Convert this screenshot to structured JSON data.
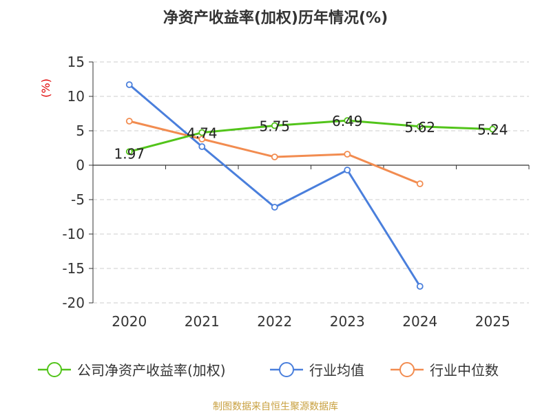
{
  "chart_data": {
    "type": "line",
    "title": "净资产收益率(加权)历年情况(%)",
    "ylabel": "(%)",
    "xlabel": "",
    "categories": [
      "2020",
      "2021",
      "2022",
      "2023",
      "2024",
      "2025"
    ],
    "ylim": [
      -20,
      15
    ],
    "yticks": [
      15,
      10,
      5,
      0,
      -5,
      -10,
      -15,
      -20
    ],
    "grid": true,
    "legend_position": "bottom",
    "series": [
      {
        "name": "公司净资产收益率(加权)",
        "color": "#52c41a",
        "values": [
          1.97,
          4.74,
          5.75,
          6.49,
          5.62,
          5.24
        ],
        "labels": [
          "1.97",
          "4.74",
          "5.75",
          "6.49",
          "5.62",
          "5.24"
        ]
      },
      {
        "name": "行业均值",
        "color": "#4a7fdc",
        "values": [
          11.7,
          2.7,
          -6.1,
          -0.7,
          -17.6,
          null
        ]
      },
      {
        "name": "行业中位数",
        "color": "#f28c50",
        "values": [
          6.4,
          3.8,
          1.2,
          1.6,
          -2.7,
          null
        ]
      }
    ],
    "source": "制图数据来自恒生聚源数据库"
  }
}
